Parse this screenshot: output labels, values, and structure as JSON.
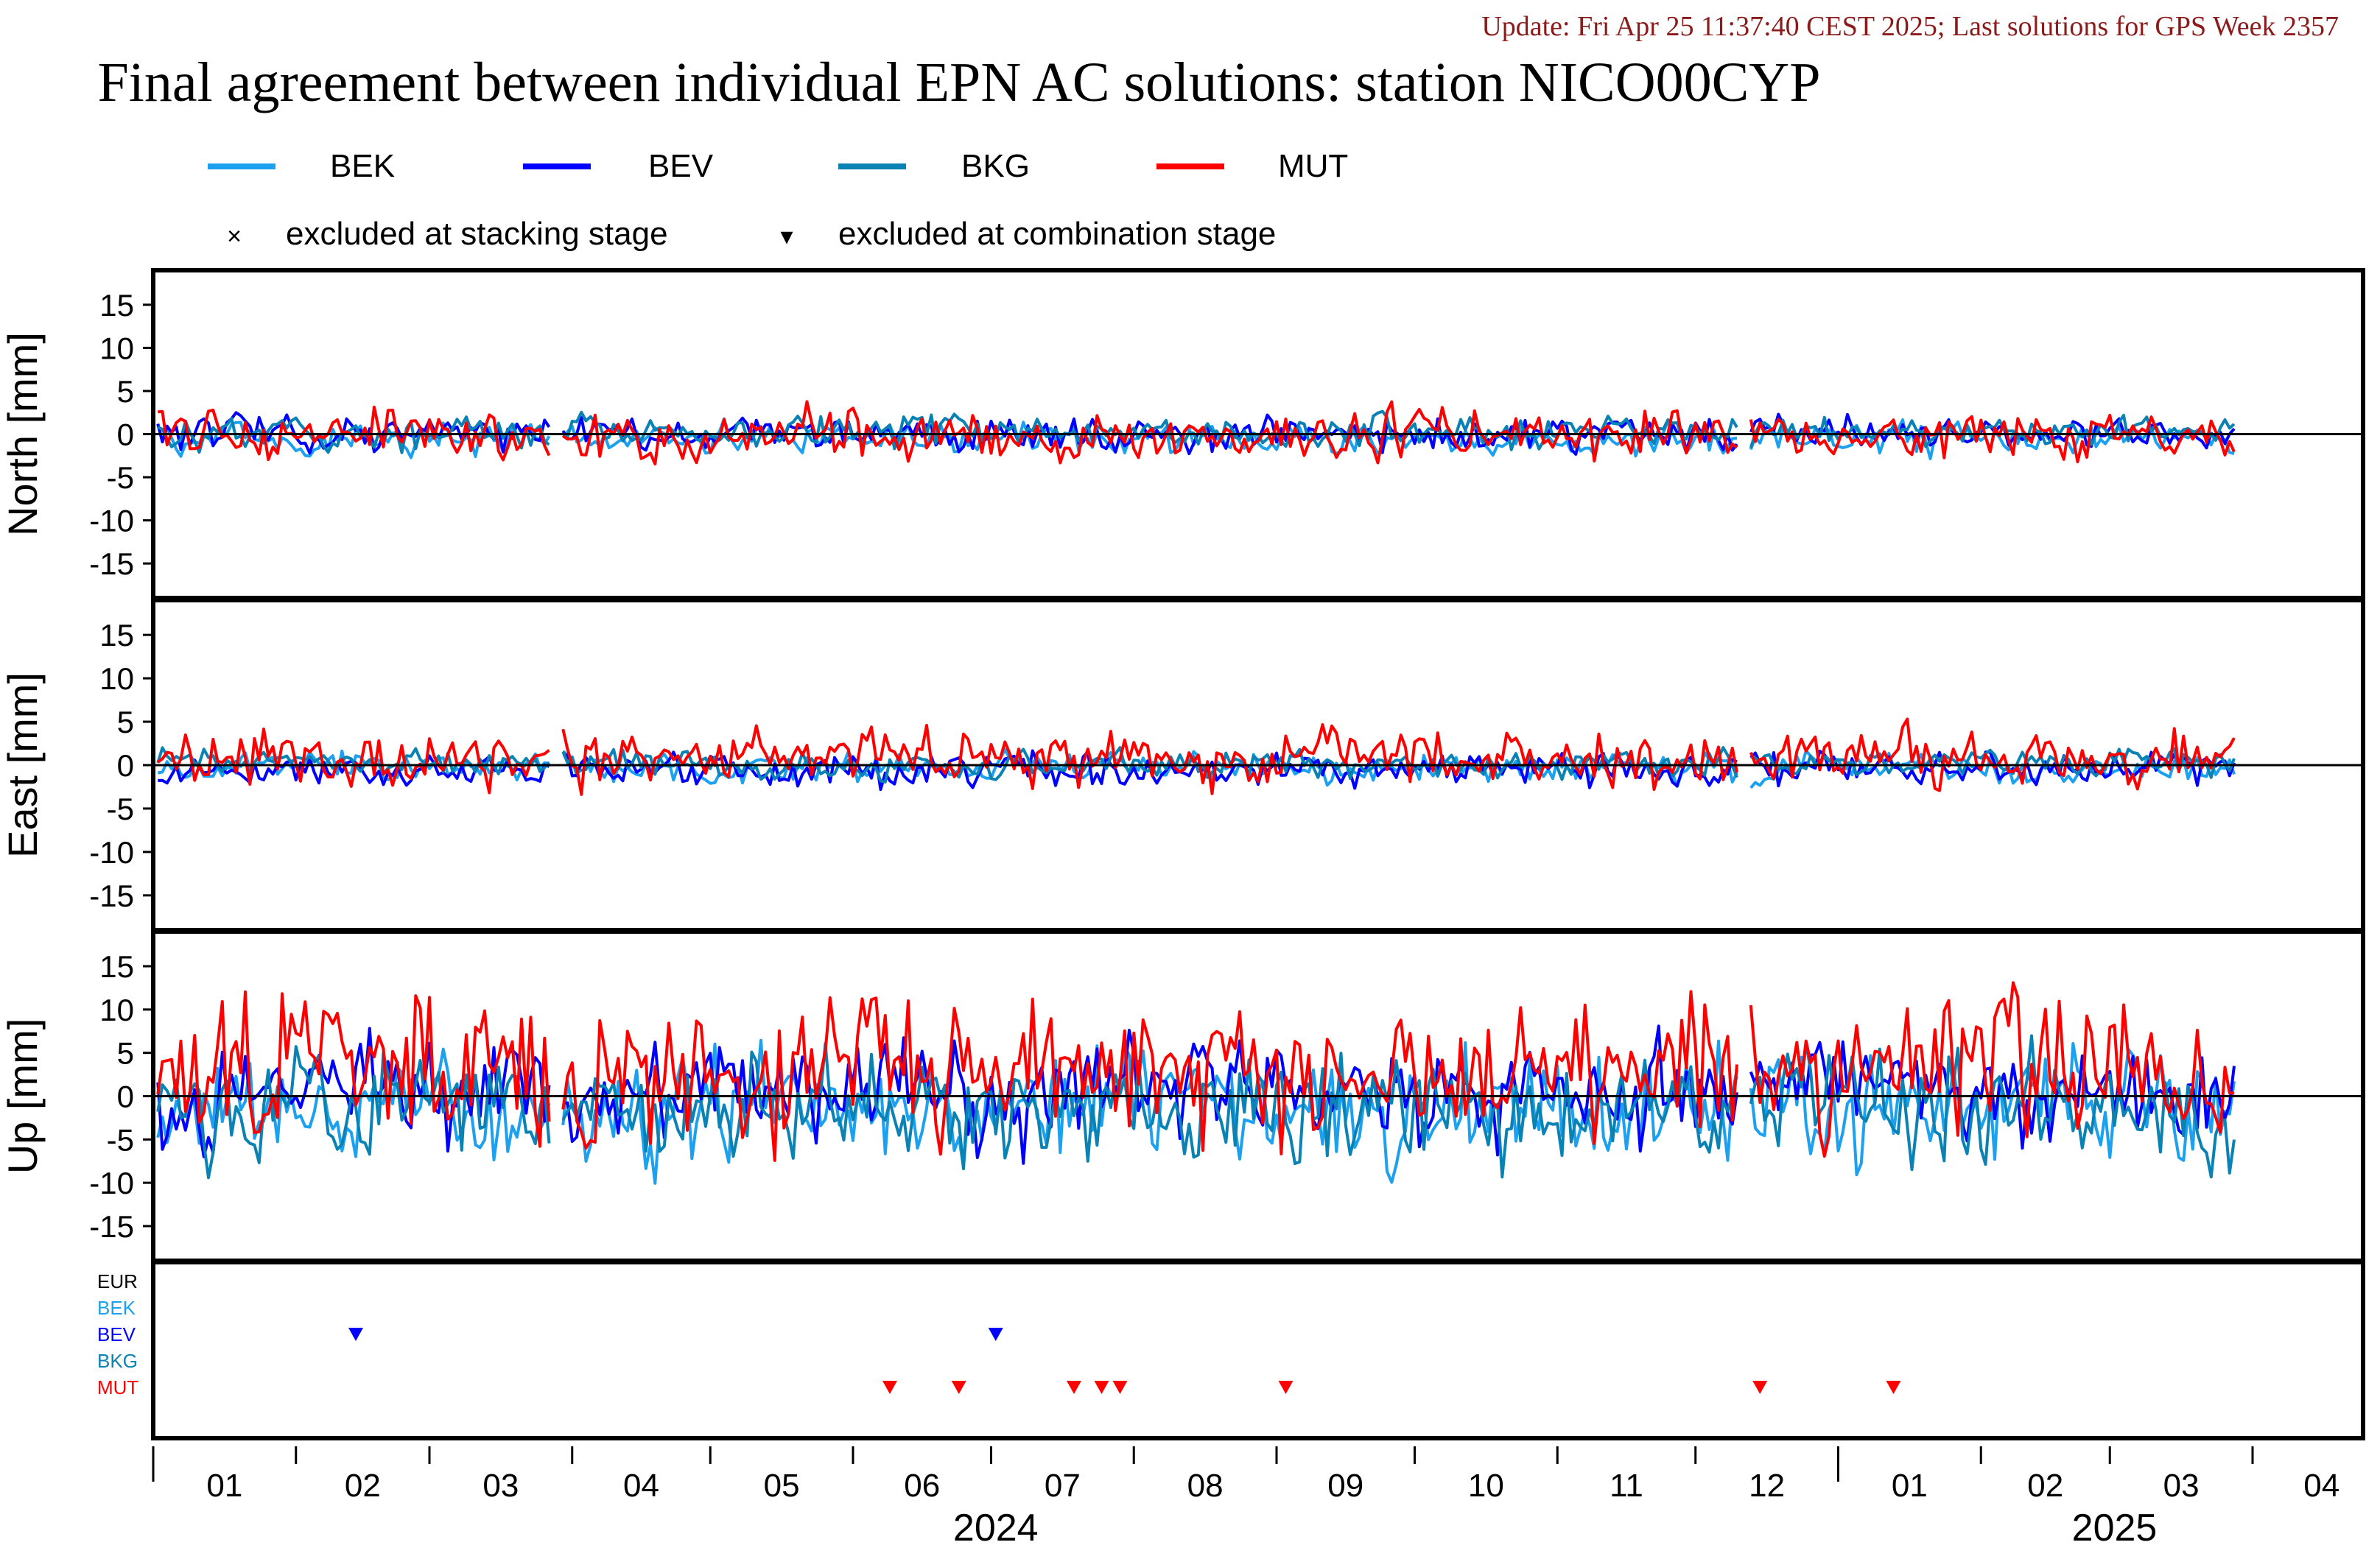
{
  "update_text": "Update: Fri Apr 25 11:37:40 CEST 2025; Last solutions for GPS Week 2357",
  "chart_data": {
    "type": "line",
    "title": "Final agreement between individual EPN AC solutions: station NICO00CYP",
    "x_range_days": [
      0,
      480
    ],
    "month_ticks": [
      "01",
      "02",
      "03",
      "04",
      "05",
      "06",
      "07",
      "08",
      "09",
      "10",
      "11",
      "12",
      "01",
      "02",
      "03",
      "04"
    ],
    "year_labels": [
      {
        "label": "2024"
      },
      {
        "label": "2025"
      }
    ],
    "legend": {
      "series": [
        {
          "name": "BEK",
          "color": "#1ca0f0"
        },
        {
          "name": "BEV",
          "color": "#0000ff"
        },
        {
          "name": "BKG",
          "color": "#0a82b4"
        },
        {
          "name": "MUT",
          "color": "#ff0000"
        }
      ],
      "symbols": [
        {
          "symbol": "×",
          "label": "excluded at stacking stage"
        },
        {
          "symbol": "▾",
          "label": "excluded at combination stage"
        }
      ]
    },
    "panels": [
      {
        "ylabel": "North [mm]",
        "ylim": [
          -19,
          19
        ],
        "yticks": [
          15,
          10,
          5,
          0,
          -5,
          -10,
          -15
        ]
      },
      {
        "ylabel": "East [mm]",
        "ylim": [
          -19,
          19
        ],
        "yticks": [
          15,
          10,
          5,
          0,
          -5,
          -10,
          -15
        ]
      },
      {
        "ylabel": "Up [mm]",
        "ylim": [
          -19,
          19
        ],
        "yticks": [
          15,
          10,
          5,
          0,
          -5,
          -10,
          -15
        ]
      }
    ],
    "exclusion_rows": [
      {
        "name": "EUR",
        "color": "#000000",
        "days": []
      },
      {
        "name": "BEK",
        "color": "#1ca0f0",
        "days": []
      },
      {
        "name": "BEV",
        "color": "#0000ff",
        "days": [
          44,
          183
        ]
      },
      {
        "name": "BKG",
        "color": "#0a82b4",
        "days": []
      },
      {
        "name": "MUT",
        "color": "#ff0000",
        "days": [
          160,
          175,
          200,
          206,
          210,
          246,
          349,
          378
        ]
      }
    ],
    "gaps": [
      [
        86,
        89
      ],
      [
        344,
        347
      ]
    ]
  }
}
